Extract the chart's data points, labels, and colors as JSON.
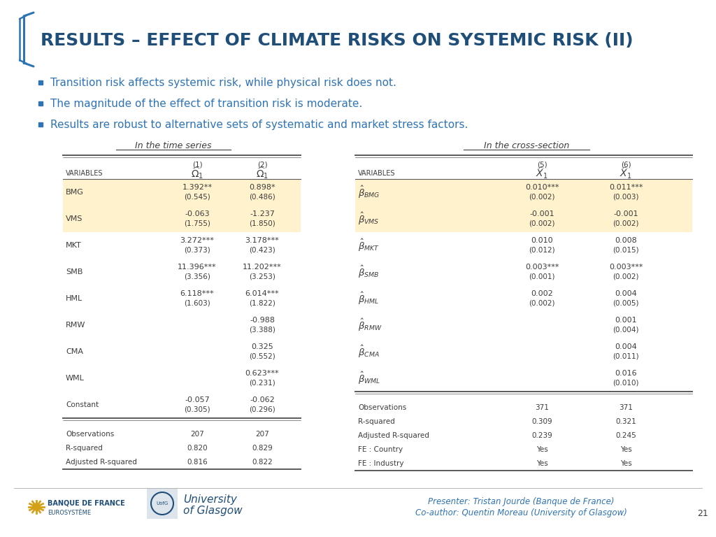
{
  "title": "RESULTS – EFFECT OF CLIMATE RISKS ON SYSTEMIC RISK (II)",
  "title_color": "#1F4E79",
  "bullet_color": "#2E74B5",
  "bullet_points": [
    "Transition risk affects systemic risk, while physical risk does not.",
    "The magnitude of the effect of transition risk is moderate.",
    "Results are robust to alternative sets of systematic and market stress factors."
  ],
  "left_table_title": "In the time series",
  "right_table_title": "In the cross-section",
  "highlight_color": "#FFF2CC",
  "table_text_color": "#3C3C3C",
  "line_color": "#5A5A5A",
  "presenter_text": "Presenter: Tristan Jourde (Banque de France)",
  "coauthor_text": "Co-author: Quentin Moreau (University of Glasgow)",
  "page_number": "21",
  "footer_link_color": "#2E74B5",
  "bg_color": "#FFFFFF",
  "bracket_color": "#2E74B5",
  "left_col_headers": [
    "(1)",
    "(2)"
  ],
  "right_col_headers": [
    "(5)",
    "(6)"
  ],
  "row_labels_left": [
    "BMG",
    "VMS",
    "MKT",
    "SMB",
    "HML",
    "RMW",
    "CMA",
    "WML",
    "Constant"
  ],
  "col1_vals": [
    "1.392**",
    "-0.063",
    "3.272***",
    "11.396***",
    "6.118***",
    "",
    "",
    "",
    "-0.057"
  ],
  "col1_se": [
    "(0.545)",
    "(1.755)",
    "(0.373)",
    "(3.356)",
    "(1.603)",
    "",
    "",
    "",
    "(0.305)"
  ],
  "col2_vals": [
    "0.898*",
    "-1.237",
    "3.178***",
    "11.202***",
    "6.014***",
    "-0.988",
    "0.325",
    "0.623***",
    "-0.062"
  ],
  "col2_se": [
    "(0.486)",
    "(1.850)",
    "(0.423)",
    "(3.253)",
    "(1.822)",
    "(3.388)",
    "(0.552)",
    "(0.231)",
    "(0.296)"
  ],
  "left_highlighted": [
    true,
    true,
    false,
    false,
    false,
    false,
    false,
    false,
    false
  ],
  "left_footer": [
    [
      "Observations",
      "207",
      "207"
    ],
    [
      "R-squared",
      "0.820",
      "0.829"
    ],
    [
      "Adjusted R-squared",
      "0.816",
      "0.822"
    ]
  ],
  "row_labels_right_tex": [
    "$\\hat{\\beta}_{BMG}$",
    "$\\hat{\\beta}_{VMS}$",
    "$\\hat{\\beta}_{MKT}$",
    "$\\hat{\\beta}_{SMB}$",
    "$\\hat{\\beta}_{HML}$",
    "$\\hat{\\beta}_{RMW}$",
    "$\\hat{\\beta}_{CMA}$",
    "$\\hat{\\beta}_{WML}$"
  ],
  "col5_vals": [
    "0.010***",
    "-0.001",
    "0.010",
    "0.003***",
    "0.002",
    "",
    "",
    ""
  ],
  "col5_se": [
    "(0.002)",
    "(0.002)",
    "(0.012)",
    "(0.001)",
    "(0.002)",
    "",
    "",
    ""
  ],
  "col6_vals": [
    "0.011***",
    "-0.001",
    "0.008",
    "0.003***",
    "0.004",
    "0.001",
    "0.004",
    "0.016"
  ],
  "col6_se": [
    "(0.003)",
    "(0.002)",
    "(0.015)",
    "(0.002)",
    "(0.005)",
    "(0.004)",
    "(0.011)",
    "(0.010)"
  ],
  "right_highlighted": [
    true,
    true,
    false,
    false,
    false,
    false,
    false,
    false
  ],
  "right_footer": [
    [
      "Observations",
      "371",
      "371"
    ],
    [
      "R-squared",
      "0.309",
      "0.321"
    ],
    [
      "Adjusted R-squared",
      "0.239",
      "0.245"
    ],
    [
      "FE : Country",
      "Yes",
      "Yes"
    ],
    [
      "FE : Industry",
      "Yes",
      "Yes"
    ]
  ]
}
